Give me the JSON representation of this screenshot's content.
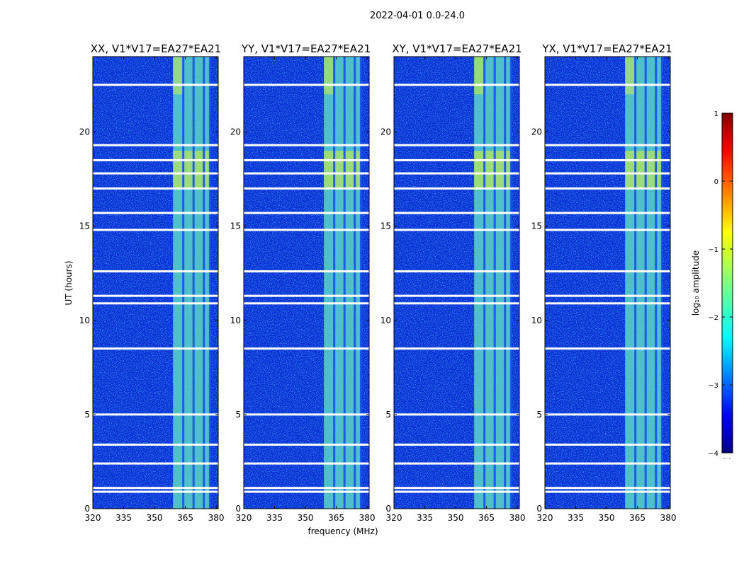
{
  "suptitle": "2022-04-01 0.0-24.0",
  "chart_data": {
    "type": "heatmap",
    "xlabel": "frequency (MHz)",
    "ylabel": "UT (hours)",
    "xlim": [
      320,
      381
    ],
    "ylim": [
      0,
      24
    ],
    "xticks": [
      320,
      335,
      350,
      365,
      380
    ],
    "yticks": [
      0,
      5,
      10,
      15,
      20
    ],
    "panels": [
      {
        "title": "XX, V1*V17=EA27*EA21",
        "pol": "XX",
        "baseline": "V1*V17=EA27*EA21"
      },
      {
        "title": "YY, V1*V17=EA27*EA21",
        "pol": "YY",
        "baseline": "V1*V17=EA27*EA21"
      },
      {
        "title": "XY, V1*V17=EA27*EA21",
        "pol": "XY",
        "baseline": "V1*V17=EA27*EA21"
      },
      {
        "title": "YX, V1*V17=EA27*EA21",
        "pol": "YX",
        "baseline": "V1*V17=EA27*EA21"
      }
    ],
    "rfi_band_mhz": [
      359,
      377
    ],
    "rfi_channel_gaps_mhz": [
      364,
      369,
      374,
      377
    ],
    "rfi_ut_interval_hours": [
      0,
      24
    ],
    "flagged_rows_ut_hours": [
      0.9,
      1.1,
      2.4,
      3.4,
      5.0,
      8.5,
      10.9,
      11.3,
      12.6,
      14.8,
      15.7,
      17.0,
      17.8,
      18.5,
      19.3,
      22.5
    ],
    "colorbar": {
      "label": "log₁₀ amplitude",
      "min": -4,
      "max": 1,
      "ticks": [
        1,
        0,
        -1,
        -2,
        -3,
        -4
      ],
      "colormap": "jet",
      "extra_label": "......"
    }
  },
  "colors": {
    "background_low": "#0a2ad8",
    "rfi_mid": "#5ad6c8",
    "rfi_high": "#d8f23a",
    "flag_white": "#ffffff"
  }
}
